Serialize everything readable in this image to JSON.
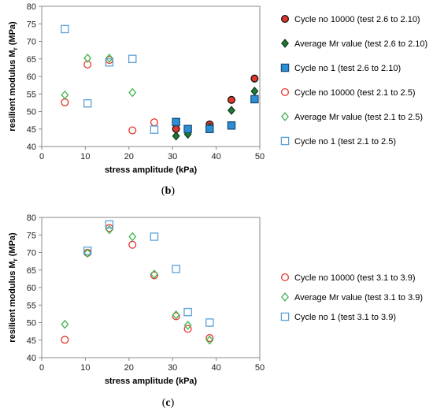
{
  "colors": {
    "red": "#e0362b",
    "red_fill": "#e0362b",
    "green": "#1f7a3a",
    "green_light": "#3fb24f",
    "blue": "#2b8fd6",
    "blue_light": "#5aa0d8"
  },
  "chart_data": [
    {
      "type": "scatter",
      "panel_label": "(b)",
      "xlabel": "stress amplitude (kPa)",
      "ylabel": "resilient modulus M",
      "ylabel_sub": "r",
      "ylabel_unit": " (MPa)",
      "xlim": [
        0,
        50
      ],
      "ylim": [
        40,
        80
      ],
      "xticks": [
        "0",
        "10",
        "20",
        "30",
        "40",
        "50"
      ],
      "yticks": [
        "40",
        "45",
        "50",
        "55",
        "60",
        "65",
        "70",
        "75",
        "80"
      ],
      "legend_position": "right",
      "series": [
        {
          "name": "Cycle no 10000 (test 2.6 to 2.10)",
          "marker": "circle",
          "filled": true,
          "color": "#e0362b",
          "x": [
            30.8,
            38.5,
            43.5,
            48.8
          ],
          "y": [
            45.0,
            46.3,
            53.3,
            59.4
          ]
        },
        {
          "name": "Average Mr value (test 2.6 to 2.10)",
          "marker": "diamond",
          "filled": true,
          "color": "#1f7a3a",
          "x": [
            30.8,
            33.5,
            38.5,
            43.5,
            48.8
          ],
          "y": [
            43.0,
            43.5,
            45.5,
            50.3,
            55.8
          ]
        },
        {
          "name": "Cycle no 1  (test 2.6 to 2.10)",
          "marker": "square",
          "filled": true,
          "color": "#2b8fd6",
          "x": [
            30.8,
            33.5,
            38.5,
            43.5,
            48.8
          ],
          "y": [
            47.0,
            45.0,
            45.0,
            46.0,
            53.5
          ]
        },
        {
          "name": "Cycle no 10000  (test 2.1 to 2.5)",
          "marker": "circle",
          "filled": false,
          "color": "#e0362b",
          "x": [
            5.3,
            10.5,
            15.5,
            20.8,
            25.8
          ],
          "y": [
            52.6,
            63.4,
            64.7,
            44.6,
            46.9
          ]
        },
        {
          "name": "Average Mr value  (test 2.1 to 2.5)",
          "marker": "diamond",
          "filled": false,
          "color": "#3fb24f",
          "x": [
            5.3,
            10.5,
            15.5,
            20.8
          ],
          "y": [
            54.7,
            65.2,
            65.2,
            55.4
          ]
        },
        {
          "name": "Cycle no 1 (test 2.1 to 2.5)",
          "marker": "square",
          "filled": false,
          "color": "#5aa0d8",
          "x": [
            5.3,
            10.5,
            15.5,
            20.8,
            25.8
          ],
          "y": [
            73.5,
            52.3,
            64.0,
            65.0,
            44.8
          ]
        }
      ]
    },
    {
      "type": "scatter",
      "panel_label": "(c)",
      "xlabel": "stress amplitude (kPa)",
      "ylabel": "resilient modulus M",
      "ylabel_sub": "r",
      "ylabel_unit": " (MPa)",
      "xlim": [
        0,
        50
      ],
      "ylim": [
        40,
        80
      ],
      "xticks": [
        "0",
        "10",
        "20",
        "30",
        "40",
        "50"
      ],
      "yticks": [
        "40",
        "45",
        "50",
        "55",
        "60",
        "65",
        "70",
        "75",
        "80"
      ],
      "legend_position": "right",
      "series": [
        {
          "name": "Cycle no 10000 (test 3.1 to 3.9)",
          "marker": "circle",
          "filled": false,
          "color": "#e0362b",
          "x": [
            5.3,
            10.5,
            15.5,
            20.8,
            25.8,
            30.8,
            33.5,
            38.5
          ],
          "y": [
            45.1,
            69.9,
            77.0,
            72.2,
            63.5,
            51.8,
            48.2,
            45.6
          ]
        },
        {
          "name": "Average Mr value (test 3.1 to 3.9)",
          "marker": "diamond",
          "filled": false,
          "color": "#3fb24f",
          "x": [
            5.3,
            10.5,
            15.5,
            20.8,
            25.8,
            30.8,
            33.5,
            38.5
          ],
          "y": [
            49.5,
            69.8,
            76.5,
            74.5,
            63.8,
            52.2,
            49.2,
            45.0
          ]
        },
        {
          "name": "Cycle no 1 (test 3.1 to 3.9)",
          "marker": "square",
          "filled": false,
          "color": "#5aa0d8",
          "x": [
            10.5,
            15.5,
            25.8,
            30.8,
            33.5,
            38.5
          ],
          "y": [
            70.5,
            78.0,
            74.5,
            65.3,
            53.0,
            50.0
          ]
        }
      ]
    }
  ]
}
